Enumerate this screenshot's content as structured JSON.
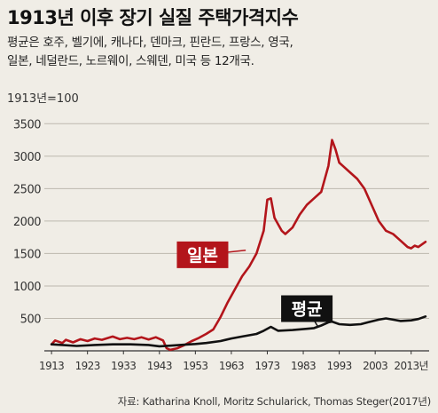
{
  "chart_data": {
    "type": "line",
    "title": "1913년 이후 장기 실질 주택가격지수",
    "subtitle_lines": [
      "평균은 호주, 벨기에, 캐나다, 덴마크, 핀란드, 프랑스, 영국,",
      "일본, 네덜란드, 노르웨이, 스웨덴, 미국 등 12개국."
    ],
    "unit_label": "1913년=100",
    "source": "자료: Katharina Knoll, Moritz Schularick, Thomas Steger(2017년)",
    "xlim": [
      1911,
      2018
    ],
    "ylim": [
      0,
      3600
    ],
    "x_ticks": [
      1913,
      1923,
      1933,
      1943,
      1953,
      1963,
      1973,
      1983,
      1993,
      2003,
      2013
    ],
    "x_tick_labels": [
      "1913",
      "1923",
      "1933",
      "1943",
      "1953",
      "1963",
      "1973",
      "1983",
      "1993",
      "2003",
      "2013년"
    ],
    "y_ticks": [
      500,
      1000,
      1500,
      2000,
      2500,
      3000,
      3500
    ],
    "grid": true,
    "series": [
      {
        "name": "일본",
        "color": "#b3151b",
        "label_box_color": "#b3151b",
        "label_anchor": [
          1967,
          1550
        ],
        "label_box_center": [
          1955,
          1480
        ],
        "points": [
          [
            1913,
            100
          ],
          [
            1914,
            160
          ],
          [
            1916,
            120
          ],
          [
            1917,
            170
          ],
          [
            1919,
            130
          ],
          [
            1921,
            180
          ],
          [
            1923,
            150
          ],
          [
            1925,
            190
          ],
          [
            1927,
            170
          ],
          [
            1930,
            220
          ],
          [
            1932,
            180
          ],
          [
            1934,
            200
          ],
          [
            1936,
            180
          ],
          [
            1938,
            210
          ],
          [
            1940,
            175
          ],
          [
            1942,
            210
          ],
          [
            1944,
            160
          ],
          [
            1945,
            40
          ],
          [
            1946,
            15
          ],
          [
            1948,
            40
          ],
          [
            1950,
            90
          ],
          [
            1952,
            150
          ],
          [
            1954,
            200
          ],
          [
            1956,
            260
          ],
          [
            1958,
            330
          ],
          [
            1960,
            520
          ],
          [
            1962,
            750
          ],
          [
            1964,
            950
          ],
          [
            1966,
            1150
          ],
          [
            1968,
            1300
          ],
          [
            1970,
            1500
          ],
          [
            1972,
            1850
          ],
          [
            1973,
            2330
          ],
          [
            1974,
            2350
          ],
          [
            1975,
            2050
          ],
          [
            1977,
            1850
          ],
          [
            1978,
            1800
          ],
          [
            1980,
            1900
          ],
          [
            1982,
            2100
          ],
          [
            1984,
            2250
          ],
          [
            1986,
            2350
          ],
          [
            1988,
            2450
          ],
          [
            1990,
            2850
          ],
          [
            1991,
            3250
          ],
          [
            1992,
            3100
          ],
          [
            1993,
            2900
          ],
          [
            1994,
            2850
          ],
          [
            1996,
            2750
          ],
          [
            1998,
            2650
          ],
          [
            2000,
            2500
          ],
          [
            2002,
            2250
          ],
          [
            2004,
            2000
          ],
          [
            2006,
            1850
          ],
          [
            2008,
            1800
          ],
          [
            2010,
            1700
          ],
          [
            2012,
            1600
          ],
          [
            2013,
            1580
          ],
          [
            2014,
            1620
          ],
          [
            2015,
            1600
          ],
          [
            2017,
            1680
          ]
        ]
      },
      {
        "name": "평균",
        "color": "#111111",
        "label_box_color": "#111111",
        "label_anchor": [
          1987,
          380
        ],
        "label_box_center": [
          1984,
          650
        ],
        "points": [
          [
            1913,
            100
          ],
          [
            1916,
            90
          ],
          [
            1920,
            75
          ],
          [
            1925,
            90
          ],
          [
            1930,
            100
          ],
          [
            1935,
            100
          ],
          [
            1940,
            90
          ],
          [
            1943,
            70
          ],
          [
            1946,
            80
          ],
          [
            1950,
            95
          ],
          [
            1953,
            105
          ],
          [
            1956,
            120
          ],
          [
            1960,
            150
          ],
          [
            1963,
            190
          ],
          [
            1966,
            220
          ],
          [
            1970,
            260
          ],
          [
            1972,
            310
          ],
          [
            1974,
            370
          ],
          [
            1976,
            310
          ],
          [
            1980,
            320
          ],
          [
            1984,
            340
          ],
          [
            1986,
            350
          ],
          [
            1988,
            390
          ],
          [
            1990,
            440
          ],
          [
            1991,
            450
          ],
          [
            1993,
            410
          ],
          [
            1996,
            400
          ],
          [
            1999,
            410
          ],
          [
            2001,
            440
          ],
          [
            2004,
            480
          ],
          [
            2006,
            500
          ],
          [
            2008,
            480
          ],
          [
            2010,
            460
          ],
          [
            2013,
            470
          ],
          [
            2015,
            490
          ],
          [
            2017,
            530
          ]
        ]
      }
    ]
  }
}
